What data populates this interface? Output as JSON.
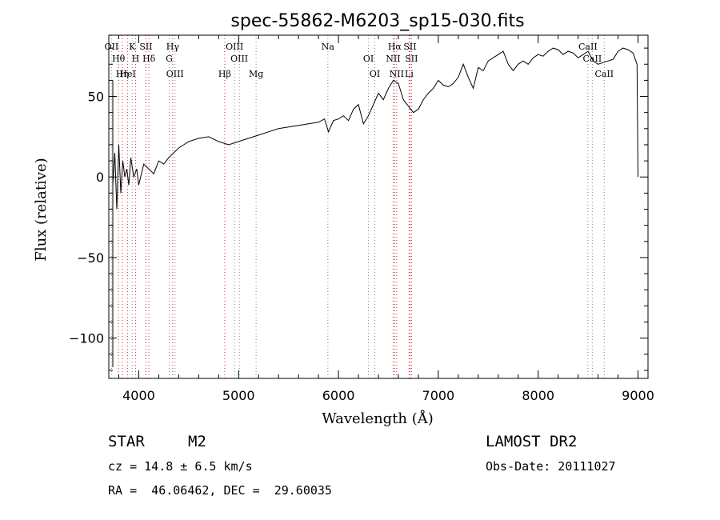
{
  "chart_data": {
    "type": "line",
    "title": "spec-55862-M6203_sp15-030.fits",
    "xlabel": "Wavelength (Å)",
    "ylabel": "Flux (relative)",
    "xlim": [
      3700,
      9100
    ],
    "ylim": [
      -125,
      88
    ],
    "xticks": [
      4000,
      5000,
      6000,
      7000,
      8000,
      9000
    ],
    "yticks": [
      -100,
      -50,
      0,
      50
    ],
    "grid": false,
    "series": [
      {
        "x": [
          3740,
          3760,
          3780,
          3800,
          3820,
          3840,
          3860,
          3880,
          3900,
          3920,
          3950,
          3980,
          4000,
          4050,
          4100,
          4150,
          4200,
          4250,
          4300,
          4350,
          4400,
          4450,
          4500,
          4600,
          4700,
          4800,
          4900,
          5000,
          5100,
          5200,
          5300,
          5400,
          5500,
          5600,
          5700,
          5800,
          5860,
          5900,
          5950,
          6000,
          6050,
          6100,
          6150,
          6200,
          6250,
          6300,
          6350,
          6400,
          6450,
          6500,
          6550,
          6600,
          6650,
          6700,
          6750,
          6800,
          6850,
          6900,
          6950,
          7000,
          7050,
          7100,
          7150,
          7200,
          7250,
          7300,
          7350,
          7400,
          7450,
          7500,
          7550,
          7600,
          7650,
          7700,
          7750,
          7800,
          7850,
          7900,
          7950,
          8000,
          8050,
          8100,
          8150,
          8200,
          8250,
          8300,
          8350,
          8400,
          8450,
          8500,
          8550,
          8600,
          8650,
          8700,
          8750,
          8800,
          8850,
          8900,
          8950,
          8990,
          9000
        ],
        "values": [
          -5,
          15,
          -20,
          20,
          -10,
          10,
          0,
          5,
          -5,
          12,
          0,
          5,
          -5,
          8,
          5,
          2,
          10,
          8,
          12,
          15,
          18,
          20,
          22,
          24,
          25,
          22,
          20,
          22,
          24,
          26,
          28,
          30,
          31,
          32,
          33,
          34,
          36,
          28,
          35,
          36,
          38,
          35,
          42,
          45,
          33,
          38,
          45,
          52,
          48,
          55,
          60,
          58,
          48,
          44,
          40,
          42,
          48,
          52,
          55,
          60,
          57,
          56,
          58,
          62,
          70,
          62,
          55,
          68,
          66,
          72,
          74,
          76,
          78,
          70,
          66,
          70,
          72,
          70,
          74,
          76,
          75,
          78,
          80,
          79,
          76,
          78,
          77,
          74,
          76,
          78,
          72,
          70,
          71,
          72,
          73,
          78,
          80,
          79,
          77,
          70,
          0
        ]
      }
    ],
    "spectral_lines": [
      {
        "label": "OII",
        "x": 3727
      },
      {
        "label": "Hθ",
        "x": 3797
      },
      {
        "label": "Hη",
        "x": 3835
      },
      {
        "label": "K",
        "x": 3934
      },
      {
        "label": "H",
        "x": 3968
      },
      {
        "label": "HeI",
        "x": 3889
      },
      {
        "label": "SII",
        "x": 4072
      },
      {
        "label": "Hδ",
        "x": 4102
      },
      {
        "label": "OIII",
        "x": 4363
      },
      {
        "label": "Hγ",
        "x": 4340
      },
      {
        "label": "G",
        "x": 4305
      },
      {
        "label": "Hβ",
        "x": 4861
      },
      {
        "label": "OIII",
        "x": 4959
      },
      {
        "label": "OIII",
        "x": 5007
      },
      {
        "label": "Mg",
        "x": 5175
      },
      {
        "label": "Na",
        "x": 5894
      },
      {
        "label": "OI",
        "x": 6300
      },
      {
        "label": "OI",
        "x": 6364
      },
      {
        "label": "Hα",
        "x": 6563
      },
      {
        "label": "NII",
        "x": 6548
      },
      {
        "label": "NII",
        "x": 6583
      },
      {
        "label": "SII",
        "x": 6716
      },
      {
        "label": "SII",
        "x": 6731
      },
      {
        "label": "Li",
        "x": 6708
      },
      {
        "label": "CaII",
        "x": 8498
      },
      {
        "label": "CaII",
        "x": 8542
      },
      {
        "label": "CaII",
        "x": 8662
      }
    ]
  },
  "info": {
    "class_label": "STAR",
    "subclass": "M2",
    "survey": "LAMOST DR2",
    "cz": "cz = 14.8 ± 6.5 km/s",
    "obs_date": "Obs-Date: 20111027",
    "coords": "RA =  46.06462, DEC =  29.60035"
  }
}
